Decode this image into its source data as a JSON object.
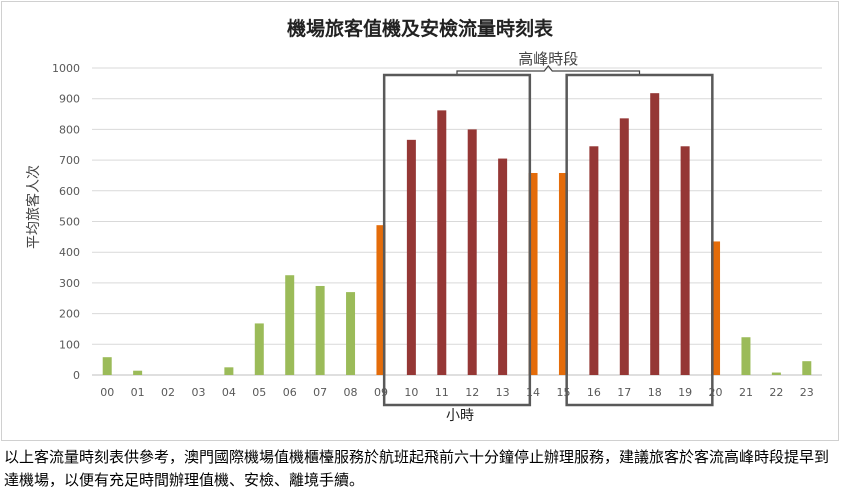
{
  "chart_data": {
    "type": "bar",
    "title": "機場旅客值機及安檢流量時刻表",
    "xlabel": "小時",
    "ylabel": "平均旅客人次",
    "ylim": [
      0,
      1000
    ],
    "yticks": [
      0,
      100,
      200,
      300,
      400,
      500,
      600,
      700,
      800,
      900,
      1000
    ],
    "grid": true,
    "categories": [
      "00",
      "01",
      "02",
      "03",
      "04",
      "05",
      "06",
      "07",
      "08",
      "09",
      "10",
      "11",
      "12",
      "13",
      "14",
      "15",
      "16",
      "17",
      "18",
      "19",
      "20",
      "21",
      "22",
      "23"
    ],
    "values": [
      58,
      14,
      0,
      0,
      25,
      168,
      325,
      290,
      270,
      488,
      766,
      862,
      800,
      705,
      658,
      658,
      745,
      836,
      918,
      745,
      435,
      123,
      8,
      45
    ],
    "bar_colors": [
      "#9bbb59",
      "#9bbb59",
      "#9bbb59",
      "#9bbb59",
      "#9bbb59",
      "#9bbb59",
      "#9bbb59",
      "#9bbb59",
      "#9bbb59",
      "#e46c0a",
      "#953735",
      "#953735",
      "#953735",
      "#953735",
      "#e46c0a",
      "#e46c0a",
      "#953735",
      "#953735",
      "#953735",
      "#953735",
      "#e46c0a",
      "#9bbb59",
      "#9bbb59",
      "#9bbb59"
    ],
    "annotation": "高峰時段",
    "peak_ranges": [
      [
        "10",
        "13"
      ],
      [
        "16",
        "19"
      ]
    ]
  },
  "note": "以上客流量時刻表供參考，澳門國際機場值機櫃檯服務於航班起飛前六十分鐘停止辦理服務，建議旅客於客流高峰時段提早到達機場，以便有充足時間辦理值機、安檢、離境手續。"
}
